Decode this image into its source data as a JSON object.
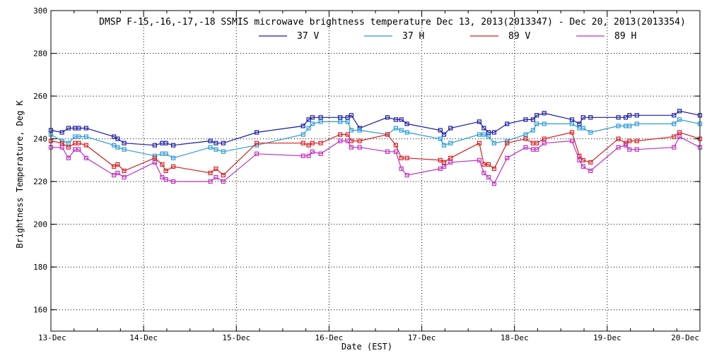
{
  "chart_data": {
    "type": "line",
    "title": "DMSP F-15,-16,-17,-18 SSMIS microwave brightness temperature Dec 13, 2013(2013347) - Dec 20, 2013(2013354)",
    "xlabel": "Date (EST)",
    "ylabel": "Brightness Temperature, Deg K",
    "xlim": [
      0,
      7
    ],
    "ylim": [
      150,
      300
    ],
    "x_ticks": [
      0,
      1,
      2,
      3,
      4,
      5,
      6,
      7
    ],
    "x_tick_labels": [
      "13-Dec",
      "14-Dec",
      "15-Dec",
      "16-Dec",
      "17-Dec",
      "18-Dec",
      "19-Dec",
      "20-Dec"
    ],
    "y_ticks": [
      160,
      180,
      200,
      220,
      240,
      260,
      280,
      300
    ],
    "y_tick_labels": [
      "160",
      "180",
      "200",
      "220",
      "240",
      "260",
      "280",
      "300"
    ],
    "grid": true,
    "legend_position": "top-center",
    "series": [
      {
        "name": "37 V",
        "color": "#1a1aa6",
        "x": [
          0.0,
          0.12,
          0.19,
          0.26,
          0.3,
          0.38,
          0.68,
          0.72,
          0.79,
          1.12,
          1.2,
          1.24,
          1.32,
          1.72,
          1.78,
          1.86,
          2.22,
          2.72,
          2.78,
          2.82,
          2.91,
          3.12,
          3.2,
          3.24,
          3.33,
          3.63,
          3.72,
          3.78,
          3.84,
          4.2,
          4.24,
          4.31,
          4.62,
          4.67,
          4.72,
          4.78,
          4.92,
          5.12,
          5.2,
          5.24,
          5.32,
          5.62,
          5.7,
          5.74,
          5.82,
          6.12,
          6.2,
          6.24,
          6.32,
          6.72,
          6.78,
          7.0
        ],
        "values": [
          244,
          243,
          245,
          245,
          245,
          245,
          241,
          240,
          238,
          237,
          238,
          238,
          237,
          239,
          238,
          238,
          243,
          246,
          249,
          250,
          250,
          250,
          250,
          251,
          245,
          250,
          249,
          249,
          247,
          244,
          242,
          245,
          248,
          245,
          243,
          243,
          247,
          249,
          249,
          251,
          252,
          249,
          247,
          250,
          250,
          250,
          250,
          251,
          251,
          251,
          253,
          251
        ]
      },
      {
        "name": "37 H",
        "color": "#2a9bd6",
        "x": [
          0.0,
          0.12,
          0.19,
          0.26,
          0.3,
          0.38,
          0.68,
          0.72,
          0.79,
          1.12,
          1.2,
          1.24,
          1.32,
          1.72,
          1.78,
          1.86,
          2.22,
          2.72,
          2.78,
          2.82,
          2.91,
          3.12,
          3.2,
          3.24,
          3.33,
          3.63,
          3.72,
          3.78,
          3.84,
          4.2,
          4.24,
          4.31,
          4.62,
          4.67,
          4.72,
          4.78,
          4.92,
          5.12,
          5.2,
          5.24,
          5.32,
          5.62,
          5.7,
          5.74,
          5.82,
          6.12,
          6.2,
          6.24,
          6.32,
          6.72,
          6.78,
          7.0
        ],
        "values": [
          242,
          239,
          238,
          241,
          241,
          241,
          237,
          236,
          235,
          232,
          233,
          233,
          231,
          236,
          235,
          234,
          237,
          242,
          245,
          247,
          248,
          248,
          248,
          244,
          244,
          242,
          245,
          244,
          243,
          240,
          237,
          238,
          242,
          242,
          241,
          238,
          239,
          242,
          244,
          247,
          247,
          247,
          245,
          245,
          243,
          246,
          246,
          246,
          247,
          247,
          249,
          247
        ]
      },
      {
        "name": "89 V",
        "color": "#d62020",
        "x": [
          0.0,
          0.12,
          0.19,
          0.26,
          0.3,
          0.38,
          0.68,
          0.72,
          0.79,
          1.12,
          1.2,
          1.24,
          1.32,
          1.72,
          1.78,
          1.86,
          2.22,
          2.72,
          2.78,
          2.82,
          2.91,
          3.12,
          3.2,
          3.24,
          3.33,
          3.63,
          3.72,
          3.78,
          3.84,
          4.2,
          4.24,
          4.31,
          4.62,
          4.67,
          4.72,
          4.78,
          4.92,
          5.12,
          5.2,
          5.24,
          5.32,
          5.62,
          5.7,
          5.74,
          5.82,
          6.12,
          6.2,
          6.24,
          6.32,
          6.72,
          6.78,
          7.0
        ],
        "values": [
          239,
          238,
          236,
          238,
          238,
          237,
          227,
          228,
          225,
          231,
          228,
          225,
          227,
          224,
          226,
          223,
          238,
          238,
          237,
          238,
          238,
          242,
          242,
          239,
          239,
          242,
          237,
          231,
          231,
          230,
          229,
          231,
          238,
          228,
          228,
          226,
          238,
          240,
          238,
          238,
          240,
          243,
          232,
          230,
          229,
          240,
          238,
          239,
          239,
          241,
          243,
          240
        ]
      },
      {
        "name": "89 H",
        "color": "#c030c0",
        "x": [
          0.0,
          0.12,
          0.19,
          0.26,
          0.3,
          0.38,
          0.68,
          0.72,
          0.79,
          1.12,
          1.2,
          1.24,
          1.32,
          1.72,
          1.78,
          1.86,
          2.22,
          2.72,
          2.78,
          2.82,
          2.91,
          3.12,
          3.2,
          3.24,
          3.33,
          3.63,
          3.72,
          3.78,
          3.84,
          4.2,
          4.24,
          4.31,
          4.62,
          4.67,
          4.72,
          4.78,
          4.92,
          5.12,
          5.2,
          5.24,
          5.32,
          5.62,
          5.7,
          5.74,
          5.82,
          6.12,
          6.2,
          6.24,
          6.32,
          6.72,
          6.78,
          7.0
        ],
        "values": [
          236,
          236,
          231,
          235,
          235,
          231,
          223,
          224,
          222,
          229,
          222,
          221,
          220,
          220,
          222,
          220,
          233,
          232,
          232,
          234,
          233,
          239,
          239,
          236,
          236,
          234,
          234,
          226,
          223,
          226,
          227,
          229,
          230,
          224,
          222,
          219,
          231,
          236,
          235,
          235,
          238,
          239,
          230,
          227,
          225,
          236,
          237,
          235,
          235,
          236,
          241,
          236
        ]
      }
    ]
  }
}
